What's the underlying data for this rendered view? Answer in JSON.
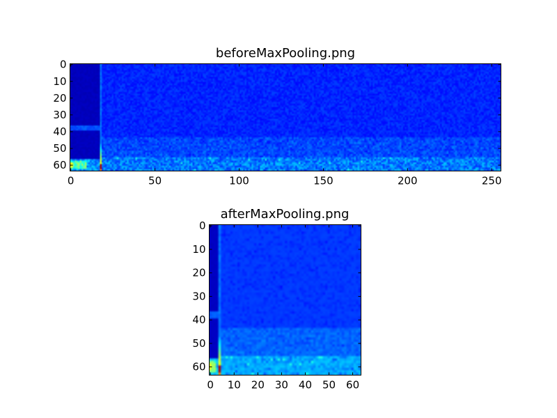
{
  "chart_data": [
    {
      "type": "heatmap",
      "title": "beforeMaxPooling.png",
      "shape": [
        64,
        256
      ],
      "colormap": "jet",
      "xlim": [
        -0.5,
        255.5
      ],
      "ylim": [
        63.5,
        -0.5
      ],
      "xticks": [
        0,
        50,
        100,
        150,
        200,
        250
      ],
      "yticks": [
        0,
        10,
        20,
        30,
        40,
        50,
        60
      ],
      "grid": false
    },
    {
      "type": "heatmap",
      "title": "afterMaxPooling.png",
      "shape": [
        64,
        64
      ],
      "colormap": "jet",
      "xlim": [
        -0.5,
        63.5
      ],
      "ylim": [
        63.5,
        -0.5
      ],
      "xticks": [
        0,
        10,
        20,
        30,
        40,
        50,
        60
      ],
      "yticks": [
        0,
        10,
        20,
        30,
        40,
        50,
        60
      ],
      "grid": false
    }
  ]
}
